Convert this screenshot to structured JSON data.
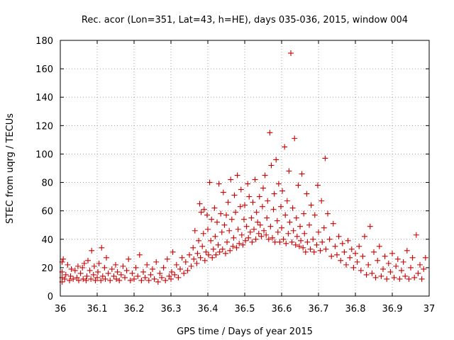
{
  "chart_data": {
    "type": "scatter",
    "title": "Rec. acor (Lon=351, Lat=43, h=HE), days 035-036, 2015, window 004",
    "xlabel": "GPS time / Days of year 2015",
    "ylabel": "STEC from uqrg / TECUs",
    "xlim": [
      36,
      37
    ],
    "ylim": [
      0,
      180
    ],
    "x_ticks": [
      "36",
      "36.1",
      "36.2",
      "36.3",
      "36.4",
      "36.5",
      "36.6",
      "36.7",
      "36.8",
      "36.9",
      "37"
    ],
    "y_ticks": [
      "0",
      "20",
      "40",
      "60",
      "80",
      "100",
      "120",
      "140",
      "160",
      "180"
    ],
    "grid": true,
    "marker": "+",
    "color": "#cc0000",
    "series": [
      {
        "name": "STEC",
        "points": [
          [
            36.005,
            10
          ],
          [
            36.005,
            13
          ],
          [
            36.005,
            17
          ],
          [
            36.005,
            24
          ],
          [
            36.008,
            26
          ],
          [
            36.012,
            12
          ],
          [
            36.015,
            15
          ],
          [
            36.02,
            22
          ],
          [
            36.025,
            11
          ],
          [
            36.028,
            14
          ],
          [
            36.03,
            19
          ],
          [
            36.035,
            12
          ],
          [
            36.04,
            18
          ],
          [
            36.045,
            13
          ],
          [
            36.048,
            21
          ],
          [
            36.05,
            11
          ],
          [
            36.055,
            16
          ],
          [
            36.06,
            20
          ],
          [
            36.062,
            12
          ],
          [
            36.065,
            23
          ],
          [
            36.07,
            11
          ],
          [
            36.072,
            14
          ],
          [
            36.075,
            25
          ],
          [
            36.08,
            18
          ],
          [
            36.083,
            12
          ],
          [
            36.085,
            32
          ],
          [
            36.09,
            15
          ],
          [
            36.092,
            21
          ],
          [
            36.095,
            11
          ],
          [
            36.1,
            13
          ],
          [
            36.102,
            17
          ],
          [
            36.105,
            23
          ],
          [
            36.11,
            11
          ],
          [
            36.112,
            34
          ],
          [
            36.115,
            14
          ],
          [
            36.12,
            20
          ],
          [
            36.122,
            12
          ],
          [
            36.125,
            27
          ],
          [
            36.13,
            16
          ],
          [
            36.135,
            11
          ],
          [
            36.14,
            19
          ],
          [
            36.145,
            14
          ],
          [
            36.15,
            22
          ],
          [
            36.152,
            12
          ],
          [
            36.155,
            17
          ],
          [
            36.16,
            11
          ],
          [
            36.165,
            15
          ],
          [
            36.17,
            21
          ],
          [
            36.175,
            13
          ],
          [
            36.18,
            18
          ],
          [
            36.185,
            26
          ],
          [
            36.19,
            11
          ],
          [
            36.195,
            16
          ],
          [
            36.2,
            12
          ],
          [
            36.205,
            20
          ],
          [
            36.21,
            14
          ],
          [
            36.215,
            29
          ],
          [
            36.22,
            11
          ],
          [
            36.225,
            17
          ],
          [
            36.23,
            13
          ],
          [
            36.235,
            22
          ],
          [
            36.24,
            11
          ],
          [
            36.245,
            15
          ],
          [
            36.25,
            19
          ],
          [
            36.255,
            12
          ],
          [
            36.26,
            24
          ],
          [
            36.265,
            10
          ],
          [
            36.27,
            16
          ],
          [
            36.275,
            13
          ],
          [
            36.28,
            20
          ],
          [
            36.285,
            11
          ],
          [
            36.29,
            26
          ],
          [
            36.295,
            14
          ],
          [
            36.3,
            12
          ],
          [
            36.302,
            17
          ],
          [
            36.305,
            31
          ],
          [
            36.31,
            15
          ],
          [
            36.315,
            22
          ],
          [
            36.32,
            13
          ],
          [
            36.325,
            19
          ],
          [
            36.33,
            27
          ],
          [
            36.335,
            16
          ],
          [
            36.34,
            24
          ],
          [
            36.345,
            18
          ],
          [
            36.35,
            29
          ],
          [
            36.355,
            21
          ],
          [
            36.36,
            34
          ],
          [
            36.362,
            26
          ],
          [
            36.365,
            46
          ],
          [
            36.37,
            23
          ],
          [
            36.372,
            30
          ],
          [
            36.375,
            39
          ],
          [
            36.378,
            65
          ],
          [
            36.38,
            27
          ],
          [
            36.382,
            59
          ],
          [
            36.385,
            35
          ],
          [
            36.388,
            44
          ],
          [
            36.39,
            61
          ],
          [
            36.392,
            25
          ],
          [
            36.395,
            31
          ],
          [
            36.398,
            57
          ],
          [
            36.4,
            47
          ],
          [
            36.402,
            29
          ],
          [
            36.405,
            80
          ],
          [
            36.408,
            39
          ],
          [
            36.41,
            54
          ],
          [
            36.412,
            27
          ],
          [
            36.415,
            33
          ],
          [
            36.418,
            62
          ],
          [
            36.42,
            42
          ],
          [
            36.422,
            29
          ],
          [
            36.425,
            52
          ],
          [
            36.428,
            36
          ],
          [
            36.43,
            79
          ],
          [
            36.432,
            31
          ],
          [
            36.435,
            58
          ],
          [
            36.438,
            45
          ],
          [
            36.44,
            33
          ],
          [
            36.442,
            73
          ],
          [
            36.445,
            50
          ],
          [
            36.448,
            30
          ],
          [
            36.45,
            57
          ],
          [
            36.452,
            38
          ],
          [
            36.455,
            66
          ],
          [
            36.458,
            46
          ],
          [
            36.46,
            32
          ],
          [
            36.462,
            82
          ],
          [
            36.465,
            54
          ],
          [
            36.468,
            35
          ],
          [
            36.47,
            41
          ],
          [
            36.472,
            71
          ],
          [
            36.475,
            59
          ],
          [
            36.478,
            34
          ],
          [
            36.48,
            85
          ],
          [
            36.482,
            47
          ],
          [
            36.485,
            37
          ],
          [
            36.488,
            63
          ],
          [
            36.49,
            75
          ],
          [
            36.492,
            43
          ],
          [
            36.495,
            36
          ],
          [
            36.498,
            54
          ],
          [
            36.5,
            64
          ],
          [
            36.502,
            39
          ],
          [
            36.505,
            49
          ],
          [
            36.508,
            79
          ],
          [
            36.51,
            41
          ],
          [
            36.512,
            70
          ],
          [
            36.515,
            45
          ],
          [
            36.518,
            55
          ],
          [
            36.52,
            38
          ],
          [
            36.522,
            66
          ],
          [
            36.525,
            47
          ],
          [
            36.528,
            82
          ],
          [
            36.53,
            40
          ],
          [
            36.532,
            59
          ],
          [
            36.535,
            52
          ],
          [
            36.538,
            44
          ],
          [
            36.54,
            70
          ],
          [
            36.542,
            50
          ],
          [
            36.545,
            42
          ],
          [
            36.548,
            63
          ],
          [
            36.55,
            76
          ],
          [
            36.552,
            46
          ],
          [
            36.555,
            85
          ],
          [
            36.558,
            43
          ],
          [
            36.56,
            55
          ],
          [
            36.562,
            67
          ],
          [
            36.565,
            40
          ],
          [
            36.568,
            115
          ],
          [
            36.57,
            49
          ],
          [
            36.572,
            92
          ],
          [
            36.575,
            41
          ],
          [
            36.578,
            61
          ],
          [
            36.58,
            72
          ],
          [
            36.582,
            38
          ],
          [
            36.585,
            96
          ],
          [
            36.588,
            53
          ],
          [
            36.59,
            45
          ],
          [
            36.592,
            79
          ],
          [
            36.595,
            38
          ],
          [
            36.598,
            63
          ],
          [
            36.6,
            48
          ],
          [
            36.602,
            74
          ],
          [
            36.605,
            40
          ],
          [
            36.608,
            105
          ],
          [
            36.61,
            57
          ],
          [
            36.612,
            37
          ],
          [
            36.615,
            67
          ],
          [
            36.618,
            44
          ],
          [
            36.62,
            88
          ],
          [
            36.622,
            52
          ],
          [
            36.625,
            171
          ],
          [
            36.628,
            38
          ],
          [
            36.63,
            62
          ],
          [
            36.632,
            46
          ],
          [
            36.635,
            111
          ],
          [
            36.638,
            36
          ],
          [
            36.64,
            55
          ],
          [
            36.642,
            42
          ],
          [
            36.645,
            78
          ],
          [
            36.648,
            35
          ],
          [
            36.65,
            49
          ],
          [
            36.652,
            39
          ],
          [
            36.655,
            86
          ],
          [
            36.658,
            34
          ],
          [
            36.66,
            58
          ],
          [
            36.662,
            44
          ],
          [
            36.665,
            31
          ],
          [
            36.668,
            72
          ],
          [
            36.67,
            38
          ],
          [
            36.675,
            50
          ],
          [
            36.678,
            33
          ],
          [
            36.68,
            64
          ],
          [
            36.685,
            40
          ],
          [
            36.688,
            31
          ],
          [
            36.69,
            57
          ],
          [
            36.695,
            36
          ],
          [
            36.698,
            78
          ],
          [
            36.7,
            45
          ],
          [
            36.705,
            32
          ],
          [
            36.708,
            67
          ],
          [
            36.71,
            38
          ],
          [
            36.715,
            48
          ],
          [
            36.718,
            97
          ],
          [
            36.72,
            33
          ],
          [
            36.725,
            58
          ],
          [
            36.73,
            40
          ],
          [
            36.735,
            28
          ],
          [
            36.74,
            51
          ],
          [
            36.745,
            35
          ],
          [
            36.75,
            29
          ],
          [
            36.755,
            42
          ],
          [
            36.76,
            25
          ],
          [
            36.765,
            37
          ],
          [
            36.77,
            31
          ],
          [
            36.775,
            22
          ],
          [
            36.78,
            39
          ],
          [
            36.785,
            27
          ],
          [
            36.79,
            33
          ],
          [
            36.795,
            20
          ],
          [
            36.8,
            30
          ],
          [
            36.805,
            24
          ],
          [
            36.81,
            35
          ],
          [
            36.815,
            18
          ],
          [
            36.82,
            28
          ],
          [
            36.825,
            42
          ],
          [
            36.83,
            15
          ],
          [
            36.835,
            22
          ],
          [
            36.84,
            49
          ],
          [
            36.845,
            16
          ],
          [
            36.85,
            31
          ],
          [
            36.855,
            13
          ],
          [
            36.86,
            25
          ],
          [
            36.865,
            35
          ],
          [
            36.87,
            14
          ],
          [
            36.875,
            19
          ],
          [
            36.88,
            28
          ],
          [
            36.885,
            12
          ],
          [
            36.89,
            23
          ],
          [
            36.895,
            17
          ],
          [
            36.9,
            30
          ],
          [
            36.905,
            13
          ],
          [
            36.91,
            21
          ],
          [
            36.915,
            26
          ],
          [
            36.92,
            12
          ],
          [
            36.925,
            18
          ],
          [
            36.93,
            24
          ],
          [
            36.935,
            14
          ],
          [
            36.94,
            32
          ],
          [
            36.945,
            12
          ],
          [
            36.95,
            20
          ],
          [
            36.955,
            27
          ],
          [
            36.96,
            13
          ],
          [
            36.965,
            43
          ],
          [
            36.97,
            16
          ],
          [
            36.975,
            22
          ],
          [
            36.98,
            12
          ],
          [
            36.985,
            19
          ],
          [
            36.99,
            27
          ]
        ]
      }
    ]
  }
}
